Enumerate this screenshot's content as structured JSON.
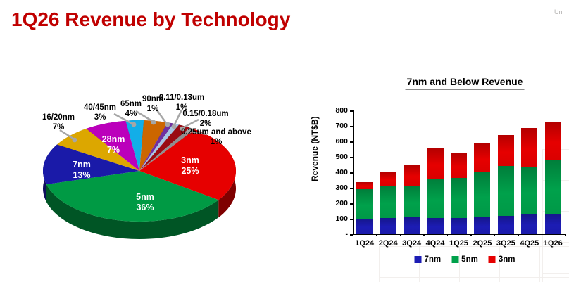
{
  "header": {
    "title": "1Q26 Revenue by Technology",
    "corner_text": "Unl"
  },
  "colors": {
    "title_red": "#c00000",
    "leader_gray": "#a6a6a6",
    "axis_black": "#000000"
  },
  "chart_data": [
    {
      "type": "pie",
      "title": "1Q26 Revenue by Technology",
      "slices": [
        {
          "label": "3nm",
          "pct": "25%",
          "value": 25,
          "color": "#e60000"
        },
        {
          "label": "5nm",
          "pct": "36%",
          "value": 36,
          "color": "#009a44"
        },
        {
          "label": "7nm",
          "pct": "13%",
          "value": 13,
          "color": "#1a1aa8"
        },
        {
          "label": "16/20nm",
          "pct": "7%",
          "value": 7,
          "color": "#dca700"
        },
        {
          "label": "28nm",
          "pct": "7%",
          "value": 7,
          "color": "#bb00bb"
        },
        {
          "label": "40/45nm",
          "pct": "3%",
          "value": 3,
          "color": "#12aee8"
        },
        {
          "label": "65nm",
          "pct": "4%",
          "value": 4,
          "color": "#cc6600"
        },
        {
          "label": "90nm",
          "pct": "1%",
          "value": 1,
          "color": "#7030a0"
        },
        {
          "label": "0.11/0.13um",
          "pct": "1%",
          "value": 1,
          "color": "#a8c6e4"
        },
        {
          "label": "0.15/0.18um",
          "pct": "2%",
          "value": 2,
          "color": "#9a0b12"
        },
        {
          "label": "0.25um and above",
          "pct": "1%",
          "value": 1,
          "color": "#8f8f8f"
        }
      ]
    },
    {
      "type": "bar",
      "stacked": true,
      "title": "7nm and Below Revenue",
      "ylabel": "Revenue (NT$B)",
      "ylim": [
        0,
        800
      ],
      "yticks": [
        "800",
        "700",
        "600",
        "500",
        "400",
        "300",
        "200",
        "100",
        "-"
      ],
      "grid": false,
      "legend_position": "bottom",
      "categories": [
        "1Q24",
        "2Q24",
        "3Q24",
        "4Q24",
        "1Q25",
        "2Q25",
        "3Q25",
        "4Q25",
        "1Q26"
      ],
      "series": [
        {
          "name": "7nm",
          "color": "#1c1cb4",
          "values": [
            100,
            105,
            108,
            105,
            105,
            111,
            117,
            127,
            130
          ]
        },
        {
          "name": "5nm",
          "color": "#00a14b",
          "values": [
            190,
            207,
            207,
            255,
            257,
            287,
            323,
            308,
            352
          ]
        },
        {
          "name": "3nm",
          "color": "#e60000",
          "values": [
            48,
            90,
            130,
            195,
            160,
            188,
            200,
            250,
            242
          ]
        }
      ]
    }
  ]
}
